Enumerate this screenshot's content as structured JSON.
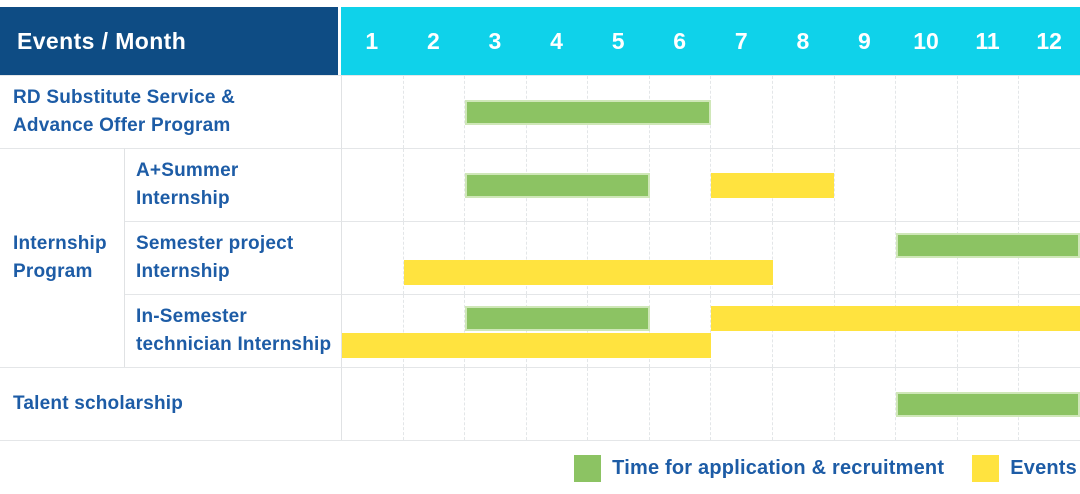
{
  "title_cell": "Events / Month",
  "months": [
    "1",
    "2",
    "3",
    "4",
    "5",
    "6",
    "7",
    "8",
    "9",
    "10",
    "11",
    "12"
  ],
  "group_label_lines": [
    "Internship",
    "Program"
  ],
  "rows": [
    {
      "label_lines": [
        "RD Substitute Service &",
        "Advance Offer Program"
      ],
      "group": null,
      "bars": [
        {
          "color": "green",
          "start": 3,
          "end": 6,
          "lane": "center"
        }
      ]
    },
    {
      "label_lines": [
        "A+Summer",
        "Internship"
      ],
      "group": "internship-program",
      "bars": [
        {
          "color": "green",
          "start": 3,
          "end": 5,
          "lane": "center"
        },
        {
          "color": "yellow",
          "start": 7,
          "end": 8,
          "lane": "center"
        }
      ]
    },
    {
      "label_lines": [
        "Semester project",
        "Internship"
      ],
      "group": "internship-program",
      "bars": [
        {
          "color": "green",
          "start": 10,
          "end": 12,
          "lane": "top"
        },
        {
          "color": "yellow",
          "start": 2,
          "end": 7,
          "lane": "bottom"
        }
      ]
    },
    {
      "label_lines": [
        "In-Semester",
        "technician Internship"
      ],
      "group": "internship-program",
      "bars": [
        {
          "color": "green",
          "start": 3,
          "end": 5,
          "lane": "top"
        },
        {
          "color": "yellow",
          "start": 7,
          "end": 12,
          "lane": "top"
        },
        {
          "color": "yellow",
          "start": 1,
          "end": 6,
          "lane": "bottom"
        }
      ]
    },
    {
      "label_lines": [
        "Talent scholarship"
      ],
      "group": null,
      "bars": [
        {
          "color": "green",
          "start": 10,
          "end": 12,
          "lane": "center"
        }
      ]
    }
  ],
  "legend": [
    {
      "color": "green",
      "label": "Time for application & recruitment"
    },
    {
      "color": "yellow",
      "label": "Events"
    }
  ],
  "colors": {
    "header_bg": "#0e4c84",
    "months_bg": "#0fd2ea",
    "header_text": "#ffffff",
    "label_text": "#1d5ca6",
    "green": "#8cc363",
    "green_border": "#cfe7b8",
    "yellow": "#ffe33f",
    "grid_h": "#e4e6e8",
    "grid_v": "#e0e2e4",
    "grid_dash": "#e3e6e8"
  },
  "chart_data": {
    "type": "table",
    "title": "Events / Month",
    "x_axis": {
      "label": "Month",
      "ticks": [
        1,
        2,
        3,
        4,
        5,
        6,
        7,
        8,
        9,
        10,
        11,
        12
      ],
      "range": [
        1,
        12
      ]
    },
    "grid": true,
    "legend_position": "bottom-right",
    "series_legend": {
      "green": "Time for application & recruitment",
      "yellow": "Events"
    },
    "rows": [
      {
        "event": "RD Substitute Service & Advance Offer Program",
        "group": null,
        "time_for_application_and_recruitment_month_ranges": [
          [
            3,
            6
          ]
        ],
        "events_month_ranges": []
      },
      {
        "event": "A+Summer Internship",
        "group": "Internship Program",
        "time_for_application_and_recruitment_month_ranges": [
          [
            3,
            5
          ]
        ],
        "events_month_ranges": [
          [
            7,
            8
          ]
        ]
      },
      {
        "event": "Semester project Internship",
        "group": "Internship Program",
        "time_for_application_and_recruitment_month_ranges": [
          [
            10,
            12
          ]
        ],
        "events_month_ranges": [
          [
            2,
            7
          ]
        ]
      },
      {
        "event": "In-Semester technician Internship",
        "group": "Internship Program",
        "time_for_application_and_recruitment_month_ranges": [
          [
            3,
            5
          ]
        ],
        "events_month_ranges": [
          [
            1,
            6
          ],
          [
            7,
            12
          ]
        ]
      },
      {
        "event": "Talent scholarship",
        "group": null,
        "time_for_application_and_recruitment_month_ranges": [
          [
            10,
            12
          ]
        ],
        "events_month_ranges": []
      }
    ]
  }
}
